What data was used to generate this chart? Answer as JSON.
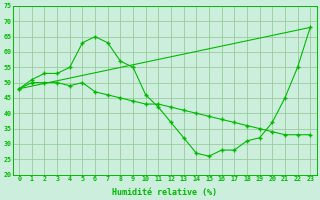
{
  "line1_x": [
    0,
    1,
    2,
    3,
    4,
    5,
    6,
    7,
    8,
    9,
    10,
    11,
    12,
    13,
    14,
    15,
    16,
    17,
    18,
    19,
    20,
    21,
    22,
    23
  ],
  "line1_y": [
    48,
    51,
    53,
    53,
    55,
    63,
    65,
    63,
    57,
    55,
    46,
    42,
    37,
    32,
    27,
    26,
    28,
    28,
    31,
    32,
    37,
    45,
    55,
    68
  ],
  "line2_x": [
    0,
    1,
    2,
    3,
    4,
    5,
    6,
    7,
    8,
    9,
    10,
    11,
    12,
    13,
    14,
    15,
    16,
    17,
    18,
    19,
    20,
    21,
    22,
    23
  ],
  "line2_y": [
    48,
    50,
    50,
    50,
    49,
    50,
    47,
    46,
    45,
    44,
    43,
    43,
    42,
    41,
    40,
    39,
    38,
    37,
    36,
    35,
    34,
    33,
    33,
    33
  ],
  "line3_x": [
    0,
    23
  ],
  "line3_y": [
    48,
    68
  ],
  "line_color": "#00bb00",
  "bg_color": "#cceedd",
  "grid_color": "#99cc99",
  "xlabel": "Humidité relative (%)",
  "xlim": [
    -0.5,
    23.5
  ],
  "ylim": [
    20,
    75
  ],
  "yticks": [
    20,
    25,
    30,
    35,
    40,
    45,
    50,
    55,
    60,
    65,
    70,
    75
  ],
  "xticks": [
    0,
    1,
    2,
    3,
    4,
    5,
    6,
    7,
    8,
    9,
    10,
    11,
    12,
    13,
    14,
    15,
    16,
    17,
    18,
    19,
    20,
    21,
    22,
    23
  ]
}
